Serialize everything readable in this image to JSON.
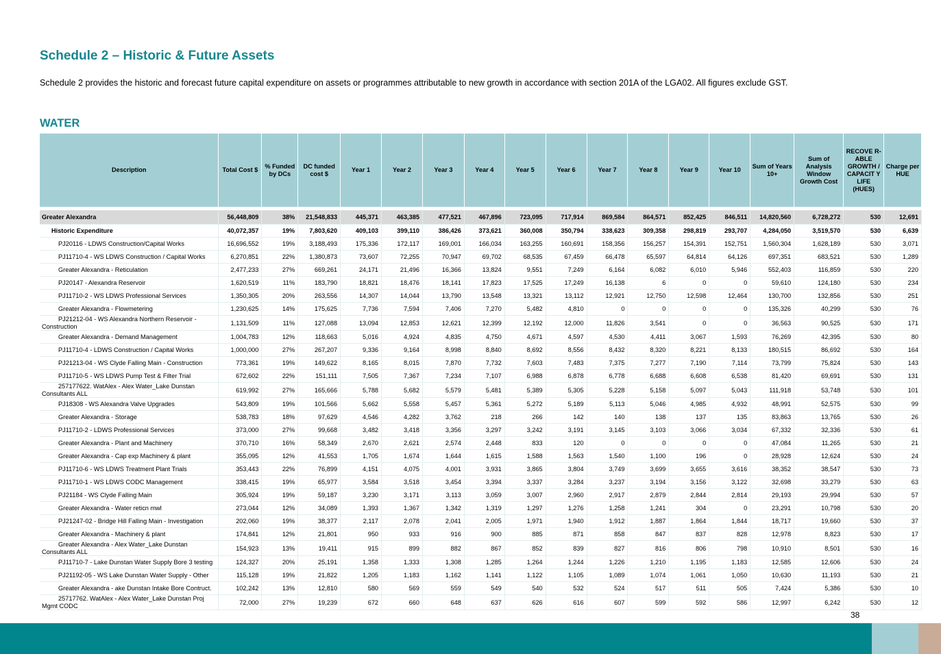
{
  "title": "Schedule 2 – Historic & Future Assets",
  "intro": "Schedule 2 provides the historic and forecast future capital expenditure on assets or programmes attributable to new growth in accordance with section 201A of the LGA02. All figures exclude GST.",
  "section": "WATER",
  "page_number": "38",
  "colors": {
    "teal": "#17878f",
    "header_bg": "#a3cfd4",
    "total_bg": "#d9d9d9",
    "footer": "#00868c",
    "footer_accent": "#c8ac98"
  },
  "headers": [
    "Description",
    "Total Cost $",
    "% Funded by DCs",
    "DC funded cost $",
    "Year 1",
    "Year 2",
    "Year 3",
    "Year 4",
    "Year 5",
    "Year 6",
    "Year 7",
    "Year 8",
    "Year 9",
    "Year 10",
    "Sum of Years 10+",
    "Sum of Analysis Window Growth Cost",
    "RECOVE R-ABLE GROWTH / CAPACIT Y LIFE (HUES)",
    "Charge per HUE"
  ],
  "rows": [
    {
      "type": "total",
      "cells": [
        "Greater Alexandra",
        "56,448,809",
        "38%",
        "21,548,833",
        "445,371",
        "463,385",
        "477,521",
        "467,896",
        "723,095",
        "717,914",
        "869,584",
        "864,571",
        "852,425",
        "846,511",
        "14,820,560",
        "6,728,272",
        "530",
        "12,691"
      ]
    },
    {
      "type": "sub",
      "cells": [
        "Historic Expenditure",
        "40,072,357",
        "19%",
        "7,803,620",
        "409,103",
        "399,110",
        "386,426",
        "373,621",
        "360,008",
        "350,794",
        "338,623",
        "309,358",
        "298,819",
        "293,707",
        "4,284,050",
        "3,519,570",
        "530",
        "6,639"
      ]
    },
    {
      "type": "item",
      "cells": [
        "PJ20116 - LDWS Construction/Capital Works",
        "16,696,552",
        "19%",
        "3,188,493",
        "175,336",
        "172,117",
        "169,001",
        "166,034",
        "163,255",
        "160,691",
        "158,356",
        "156,257",
        "154,391",
        "152,751",
        "1,560,304",
        "1,628,189",
        "530",
        "3,071"
      ]
    },
    {
      "type": "wrap",
      "cells": [
        "PJ11710-4 - WS LDWS Construction / Capital Works",
        "6,270,851",
        "22%",
        "1,380,873",
        "73,607",
        "72,255",
        "70,947",
        "69,702",
        "68,535",
        "67,459",
        "66,478",
        "65,597",
        "64,814",
        "64,126",
        "697,351",
        "683,521",
        "530",
        "1,289"
      ]
    },
    {
      "type": "item",
      "cells": [
        "Greater Alexandra - Reticulation",
        "2,477,233",
        "27%",
        "669,261",
        "24,171",
        "21,496",
        "16,366",
        "13,824",
        "9,551",
        "7,249",
        "6,164",
        "6,082",
        "6,010",
        "5,946",
        "552,403",
        "116,859",
        "530",
        "220"
      ]
    },
    {
      "type": "item",
      "cells": [
        "PJ20147 - Alexandra Reservoir",
        "1,620,519",
        "11%",
        "183,790",
        "18,821",
        "18,476",
        "18,141",
        "17,823",
        "17,525",
        "17,249",
        "16,138",
        "6",
        "0",
        "0",
        "59,610",
        "124,180",
        "530",
        "234"
      ]
    },
    {
      "type": "item",
      "cells": [
        "PJ11710-2 - WS LDWS Professional Services",
        "1,350,305",
        "20%",
        "263,556",
        "14,307",
        "14,044",
        "13,790",
        "13,548",
        "13,321",
        "13,112",
        "12,921",
        "12,750",
        "12,598",
        "12,464",
        "130,700",
        "132,856",
        "530",
        "251"
      ]
    },
    {
      "type": "item",
      "cells": [
        "Greater Alexandra - Flowmetering",
        "1,230,625",
        "14%",
        "175,625",
        "7,736",
        "7,594",
        "7,406",
        "7,270",
        "5,482",
        "4,810",
        "0",
        "0",
        "0",
        "0",
        "135,326",
        "40,299",
        "530",
        "76"
      ]
    },
    {
      "type": "wrap",
      "cells": [
        "PJ21212-04 - WS Alexandra Northern Reservoir - Construction",
        "1,131,509",
        "11%",
        "127,088",
        "13,094",
        "12,853",
        "12,621",
        "12,399",
        "12,192",
        "12,000",
        "11,826",
        "3,541",
        "0",
        "0",
        "36,563",
        "90,525",
        "530",
        "171"
      ]
    },
    {
      "type": "item",
      "cells": [
        "Greater Alexandra - Demand Management",
        "1,004,783",
        "12%",
        "118,663",
        "5,016",
        "4,924",
        "4,835",
        "4,750",
        "4,671",
        "4,597",
        "4,530",
        "4,411",
        "3,067",
        "1,593",
        "76,269",
        "42,395",
        "530",
        "80"
      ]
    },
    {
      "type": "item",
      "cells": [
        "PJ11710-4 - LDWS Construction / Capital Works",
        "1,000,000",
        "27%",
        "267,207",
        "9,336",
        "9,164",
        "8,998",
        "8,840",
        "8,692",
        "8,556",
        "8,432",
        "8,320",
        "8,221",
        "8,133",
        "180,515",
        "86,692",
        "530",
        "164"
      ]
    },
    {
      "type": "item",
      "cells": [
        "PJ21213-04 - WS Clyde Falling Main - Construction",
        "773,361",
        "19%",
        "149,622",
        "8,165",
        "8,015",
        "7,870",
        "7,732",
        "7,603",
        "7,483",
        "7,375",
        "7,277",
        "7,190",
        "7,114",
        "73,799",
        "75,824",
        "530",
        "143"
      ]
    },
    {
      "type": "item",
      "cells": [
        "PJ11710-5 - WS LDWS Pump Test & Filter Trial",
        "672,602",
        "22%",
        "151,111",
        "7,505",
        "7,367",
        "7,234",
        "7,107",
        "6,988",
        "6,878",
        "6,778",
        "6,688",
        "6,608",
        "6,538",
        "81,420",
        "69,691",
        "530",
        "131"
      ]
    },
    {
      "type": "wrap",
      "cells": [
        "257177622. WatAlex - Alex Water_Lake Dunstan Consultants ALL",
        "619,992",
        "27%",
        "165,666",
        "5,788",
        "5,682",
        "5,579",
        "5,481",
        "5,389",
        "5,305",
        "5,228",
        "5,158",
        "5,097",
        "5,043",
        "111,918",
        "53,748",
        "530",
        "101"
      ]
    },
    {
      "type": "item",
      "cells": [
        "PJ18308 - WS Alexandra Valve Upgrades",
        "543,809",
        "19%",
        "101,566",
        "5,662",
        "5,558",
        "5,457",
        "5,361",
        "5,272",
        "5,189",
        "5,113",
        "5,046",
        "4,985",
        "4,932",
        "48,991",
        "52,575",
        "530",
        "99"
      ]
    },
    {
      "type": "item",
      "cells": [
        "Greater Alexandra - Storage",
        "538,783",
        "18%",
        "97,629",
        "4,546",
        "4,282",
        "3,762",
        "218",
        "266",
        "142",
        "140",
        "138",
        "137",
        "135",
        "83,863",
        "13,765",
        "530",
        "26"
      ]
    },
    {
      "type": "item",
      "cells": [
        "PJ11710-2 - LDWS Professional Services",
        "373,000",
        "27%",
        "99,668",
        "3,482",
        "3,418",
        "3,356",
        "3,297",
        "3,242",
        "3,191",
        "3,145",
        "3,103",
        "3,066",
        "3,034",
        "67,332",
        "32,336",
        "530",
        "61"
      ]
    },
    {
      "type": "item",
      "cells": [
        "Greater Alexandra - Plant and Machinery",
        "370,710",
        "16%",
        "58,349",
        "2,670",
        "2,621",
        "2,574",
        "2,448",
        "833",
        "120",
        "0",
        "0",
        "0",
        "0",
        "47,084",
        "11,265",
        "530",
        "21"
      ]
    },
    {
      "type": "item",
      "cells": [
        "Greater Alexandra - Cap exp Machinery & plant",
        "355,095",
        "12%",
        "41,553",
        "1,705",
        "1,674",
        "1,644",
        "1,615",
        "1,588",
        "1,563",
        "1,540",
        "1,100",
        "196",
        "0",
        "28,928",
        "12,624",
        "530",
        "24"
      ]
    },
    {
      "type": "item",
      "cells": [
        "PJ11710-6 - WS LDWS Treatment  Plant Trials",
        "353,443",
        "22%",
        "76,899",
        "4,151",
        "4,075",
        "4,001",
        "3,931",
        "3,865",
        "3,804",
        "3,749",
        "3,699",
        "3,655",
        "3,616",
        "38,352",
        "38,547",
        "530",
        "73"
      ]
    },
    {
      "type": "item",
      "cells": [
        "PJ11710-1 - WS LDWS CODC Management",
        "338,415",
        "19%",
        "65,977",
        "3,584",
        "3,518",
        "3,454",
        "3,394",
        "3,337",
        "3,284",
        "3,237",
        "3,194",
        "3,156",
        "3,122",
        "32,698",
        "33,279",
        "530",
        "63"
      ]
    },
    {
      "type": "item",
      "cells": [
        "PJ21184 - WS Clyde Falling Main",
        "305,924",
        "19%",
        "59,187",
        "3,230",
        "3,171",
        "3,113",
        "3,059",
        "3,007",
        "2,960",
        "2,917",
        "2,879",
        "2,844",
        "2,814",
        "29,193",
        "29,994",
        "530",
        "57"
      ]
    },
    {
      "type": "item",
      "cells": [
        "Greater Alexandra - Water reticn mwl",
        "273,044",
        "12%",
        "34,089",
        "1,393",
        "1,367",
        "1,342",
        "1,319",
        "1,297",
        "1,276",
        "1,258",
        "1,241",
        "304",
        "0",
        "23,291",
        "10,798",
        "530",
        "20"
      ]
    },
    {
      "type": "item",
      "cells": [
        "PJ21247-02 - Bridge Hill Falling Main - Investigation",
        "202,060",
        "19%",
        "38,377",
        "2,117",
        "2,078",
        "2,041",
        "2,005",
        "1,971",
        "1,940",
        "1,912",
        "1,887",
        "1,864",
        "1,844",
        "18,717",
        "19,660",
        "530",
        "37"
      ]
    },
    {
      "type": "item",
      "cells": [
        "Greater Alexandra - Machinery & plant",
        "174,841",
        "12%",
        "21,801",
        "950",
        "933",
        "916",
        "900",
        "885",
        "871",
        "858",
        "847",
        "837",
        "828",
        "12,978",
        "8,823",
        "530",
        "17"
      ]
    },
    {
      "type": "wrap",
      "cells": [
        "Greater Alexandra - Alex Water_Lake Dunstan Consultants ALL",
        "154,923",
        "13%",
        "19,411",
        "915",
        "899",
        "882",
        "867",
        "852",
        "839",
        "827",
        "816",
        "806",
        "798",
        "10,910",
        "8,501",
        "530",
        "16"
      ]
    },
    {
      "type": "wrap",
      "cells": [
        "PJ11710-7 - Lake Dunstan Water Supply Bore 3 testing",
        "124,327",
        "20%",
        "25,191",
        "1,358",
        "1,333",
        "1,308",
        "1,285",
        "1,264",
        "1,244",
        "1,226",
        "1,210",
        "1,195",
        "1,183",
        "12,585",
        "12,606",
        "530",
        "24"
      ]
    },
    {
      "type": "wrap",
      "cells": [
        "PJ21192-05 - WS Lake Dunstan Water Supply - Other",
        "115,128",
        "19%",
        "21,822",
        "1,205",
        "1,183",
        "1,162",
        "1,141",
        "1,122",
        "1,105",
        "1,089",
        "1,074",
        "1,061",
        "1,050",
        "10,630",
        "11,193",
        "530",
        "21"
      ]
    },
    {
      "type": "wrap",
      "cells": [
        "Greater Alexandra - ake Dunstan Intake Bore Contruct.",
        "102,242",
        "13%",
        "12,810",
        "580",
        "569",
        "559",
        "549",
        "540",
        "532",
        "524",
        "517",
        "511",
        "505",
        "7,424",
        "5,386",
        "530",
        "10"
      ]
    },
    {
      "type": "wrap",
      "cells": [
        "25717762. WatAlex - Alex Water_Lake Dunstan Proj Mgmt CODC",
        "72,000",
        "27%",
        "19,239",
        "672",
        "660",
        "648",
        "637",
        "626",
        "616",
        "607",
        "599",
        "592",
        "586",
        "12,997",
        "6,242",
        "530",
        "12"
      ]
    }
  ]
}
